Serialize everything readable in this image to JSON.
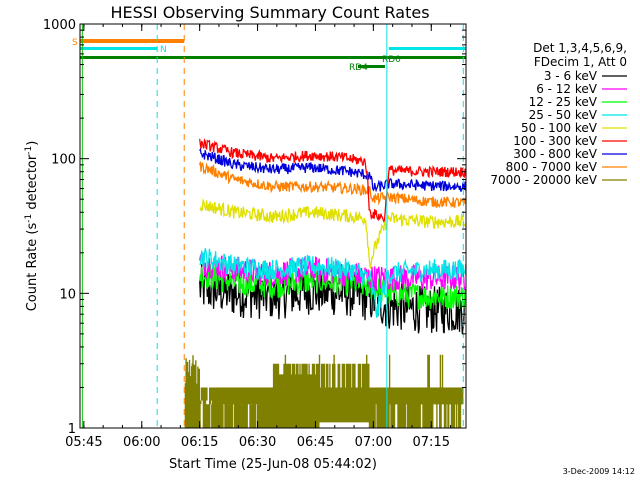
{
  "chart_data": {
    "type": "line",
    "title": "HESSI Observing Summary Count Rates",
    "xlabel": "Start Time (25-Jun-08 05:44:02)",
    "ylabel_main": "Count Rate (s",
    "ylabel_sup1": "-1",
    "ylabel_mid": " detector",
    "ylabel_sup2": "-1",
    "ylabel_end": ")",
    "y_scale": "log",
    "ylim": [
      1,
      1000
    ],
    "xlim_minutes": [
      0,
      100
    ],
    "x_ticks": [
      {
        "m": 1,
        "label": "05:45"
      },
      {
        "m": 16,
        "label": "06:00"
      },
      {
        "m": 31,
        "label": "06:15"
      },
      {
        "m": 46,
        "label": "06:30"
      },
      {
        "m": 61,
        "label": "06:45"
      },
      {
        "m": 76,
        "label": "07:00"
      },
      {
        "m": 91,
        "label": "07:15"
      }
    ],
    "y_ticks": [
      {
        "v": 1,
        "label": "1"
      },
      {
        "v": 10,
        "label": "10"
      },
      {
        "v": 100,
        "label": "100"
      },
      {
        "v": 1000,
        "label": "1000"
      }
    ],
    "legend_header": [
      "Det 1,3,4,5,6,9,",
      "FDecim 1, Att 0"
    ],
    "series": [
      {
        "name": "3 - 6 keV",
        "color": "#000000",
        "points": [
          [
            31,
            11
          ],
          [
            40,
            10
          ],
          [
            50,
            9.5
          ],
          [
            60,
            10.5
          ],
          [
            70,
            10
          ],
          [
            76,
            9
          ],
          [
            80,
            8
          ],
          [
            90,
            7.5
          ],
          [
            100,
            7.5
          ]
        ],
        "noise": 0.18
      },
      {
        "name": "6 - 12 keV",
        "color": "#ff00ff",
        "points": [
          [
            31,
            17
          ],
          [
            40,
            15
          ],
          [
            50,
            14
          ],
          [
            60,
            15
          ],
          [
            70,
            14
          ],
          [
            76,
            13
          ],
          [
            80,
            13
          ],
          [
            90,
            13
          ],
          [
            100,
            13
          ]
        ],
        "noise": 0.1
      },
      {
        "name": "12 - 25 keV",
        "color": "#00ff00",
        "points": [
          [
            31,
            14
          ],
          [
            40,
            12
          ],
          [
            50,
            11.5
          ],
          [
            60,
            12.5
          ],
          [
            70,
            12
          ],
          [
            76,
            11
          ],
          [
            80,
            10
          ],
          [
            90,
            9.5
          ],
          [
            100,
            9.5
          ]
        ],
        "noise": 0.1
      },
      {
        "name": "25 - 50 keV",
        "color": "#00e5e5",
        "points": [
          [
            31,
            19
          ],
          [
            40,
            16
          ],
          [
            50,
            15
          ],
          [
            60,
            16
          ],
          [
            70,
            15
          ],
          [
            75,
            13
          ],
          [
            77,
            7
          ],
          [
            80,
            14
          ],
          [
            90,
            15
          ],
          [
            100,
            15
          ]
        ],
        "noise": 0.08
      },
      {
        "name": "50 - 100 keV",
        "color": "#e0e000",
        "points": [
          [
            31,
            46
          ],
          [
            40,
            40
          ],
          [
            50,
            37
          ],
          [
            60,
            40
          ],
          [
            68,
            38
          ],
          [
            74,
            36
          ],
          [
            75,
            16
          ],
          [
            80,
            36
          ],
          [
            90,
            34
          ],
          [
            100,
            34
          ]
        ],
        "noise": 0.05
      },
      {
        "name": "100 - 300 keV",
        "color": "#ff0000",
        "points": [
          [
            31,
            130
          ],
          [
            40,
            110
          ],
          [
            50,
            100
          ],
          [
            60,
            106
          ],
          [
            68,
            102
          ],
          [
            74,
            95
          ],
          [
            75,
            40
          ],
          [
            79,
            36
          ],
          [
            80,
            82
          ],
          [
            90,
            80
          ],
          [
            100,
            80
          ]
        ],
        "noise": 0.04
      },
      {
        "name": "300 - 800 keV",
        "color": "#0000dd",
        "points": [
          [
            31,
            110
          ],
          [
            40,
            90
          ],
          [
            50,
            83
          ],
          [
            60,
            86
          ],
          [
            70,
            80
          ],
          [
            75,
            75
          ],
          [
            76,
            60
          ],
          [
            80,
            65
          ],
          [
            90,
            63
          ],
          [
            100,
            62
          ]
        ],
        "noise": 0.04
      },
      {
        "name": "800 - 7000 keV",
        "color": "#ff8000",
        "points": [
          [
            31,
            88
          ],
          [
            40,
            70
          ],
          [
            50,
            62
          ],
          [
            60,
            62
          ],
          [
            70,
            60
          ],
          [
            75,
            58
          ],
          [
            76,
            50
          ],
          [
            80,
            52
          ],
          [
            90,
            48
          ],
          [
            100,
            47
          ]
        ],
        "noise": 0.04
      },
      {
        "name": "7000 - 20000 keV",
        "color": "#808000",
        "points": [],
        "noise": 0
      }
    ],
    "annotations": [
      {
        "label": "S",
        "color": "#ff8000"
      },
      {
        "label": "N",
        "color": "#00e5e5"
      },
      {
        "label": "RD0",
        "color": "#008000"
      },
      {
        "label": "RD4",
        "color": "#008000"
      }
    ],
    "footer_date": "3-Dec-2009 14:12"
  }
}
